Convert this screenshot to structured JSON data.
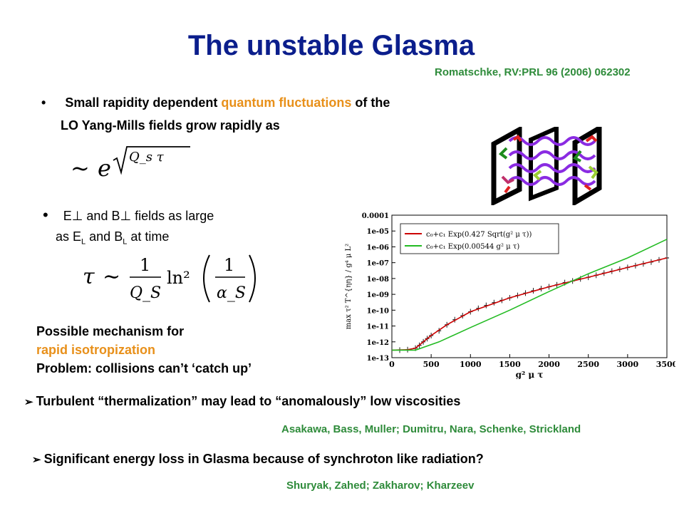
{
  "title": "The unstable Glasma",
  "ref_top": "Romatschke, RV:PRL 96 (2006) 062302",
  "bullet1": {
    "marker": "•",
    "prefix": "Small rapidity dependent ",
    "highlight": "quantum fluctuations",
    "suffix": " of the",
    "line2": "LO Yang-Mills fields grow rapidly as"
  },
  "formula1": {
    "sim": "~",
    "base": "e",
    "exponent": "Q_s τ"
  },
  "bullet2": {
    "marker": "•",
    "part1": "E",
    "perp": "⊥",
    "part2": " and B",
    "part3": " fields as large",
    "line2a": "as E",
    "sub": "L",
    "line2b": " and B",
    "line2c": " at time"
  },
  "formula2": {
    "tau": "τ",
    "sim": "∼",
    "one": "1",
    "qs": "Q_S",
    "ln": "ln²",
    "alpha": "α_S"
  },
  "mechanism": {
    "line1": "Possible mechanism for",
    "line2": "rapid isotropization",
    "line3": "Problem: collisions can’t ‘catch up’"
  },
  "arrow1": {
    "marker": "➢",
    "text": "Turbulent “thermalization” may lead to “anomalously” low viscosities"
  },
  "ref_mid": "Asakawa, Bass, Muller; Dumitru, Nara, Schenke, Strickland",
  "arrow2": {
    "marker": "➢",
    "text": "Significant energy loss in Glasma because of synchroton like radiation?"
  },
  "ref_bottom": "Shuryak, Zahed; Zakharov; Kharzeev",
  "chart_data": {
    "type": "line",
    "xlabel": "g² μ τ",
    "ylabel": "max τ² T^{ηη} / g⁴ μ L²",
    "xlim": [
      0,
      3500
    ],
    "ylim_log10": [
      -13,
      -4
    ],
    "y_scale": "log",
    "x_ticks": [
      "0",
      "500",
      "1000",
      "1500",
      "2000",
      "2500",
      "3000",
      "3500"
    ],
    "y_ticks": [
      "0.0001",
      "1e-05",
      "1e-06",
      "1e-07",
      "1e-08",
      "1e-09",
      "1e-10",
      "1e-11",
      "1e-12",
      "1e-13"
    ],
    "legend_position": "top-left",
    "series": [
      {
        "name": "c₀+c₁ Exp(0.427 Sqrt(g² μ τ))",
        "color": "#cc0000",
        "x": [
          0,
          200,
          300,
          400,
          500,
          700,
          1000,
          1500,
          2000,
          2500,
          3000,
          3500
        ],
        "y": [
          3e-13,
          3.2e-13,
          4e-13,
          1e-12,
          2.5e-12,
          1.2e-11,
          8e-11,
          6e-10,
          3e-09,
          1.2e-08,
          5e-08,
          2e-07
        ]
      },
      {
        "name": "c₀+c₁ Exp(0.00544 g² μ τ)",
        "color": "#22bb22",
        "x": [
          0,
          300,
          600,
          1000,
          1500,
          2000,
          2500,
          3000,
          3500
        ],
        "y": [
          3e-13,
          3e-13,
          1e-12,
          8e-12,
          1e-10,
          1.5e-09,
          2e-08,
          2e-07,
          3e-06
        ]
      }
    ],
    "data_points": {
      "color": "#222222",
      "x": [
        100,
        200,
        300,
        350,
        400,
        450,
        500,
        600,
        700,
        800,
        900,
        1000,
        1100,
        1200,
        1300,
        1400,
        1500,
        1600,
        1700,
        1800,
        1900,
        2000,
        2100,
        2200,
        2300,
        2400,
        2500,
        2600,
        2700,
        2800,
        2900,
        3000,
        3100,
        3200,
        3300,
        3400,
        3500
      ],
      "y": [
        3e-13,
        3.2e-13,
        4e-13,
        6e-13,
        1e-12,
        1.6e-12,
        2.5e-12,
        5e-12,
        1.2e-11,
        2.5e-11,
        4.5e-11,
        8e-11,
        1.3e-10,
        2e-10,
        3e-10,
        4.2e-10,
        6e-10,
        8.5e-10,
        1.2e-09,
        1.7e-09,
        2.3e-09,
        3e-09,
        4e-09,
        5.5e-09,
        7e-09,
        9.5e-09,
        1.2e-08,
        1.6e-08,
        2.2e-08,
        2.9e-08,
        3.8e-08,
        5e-08,
        6.5e-08,
        8.5e-08,
        1.1e-07,
        1.5e-07,
        2e-07
      ]
    }
  }
}
